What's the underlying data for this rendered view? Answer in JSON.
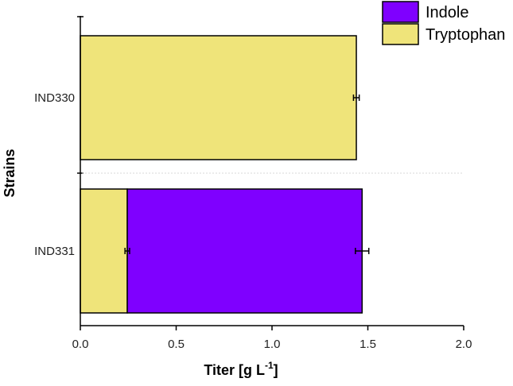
{
  "chart_data": {
    "type": "bar",
    "orientation": "horizontal",
    "stacked": true,
    "categories": [
      "IND330",
      "IND331"
    ],
    "series": [
      {
        "name": "Tryptophan",
        "color": "#EFE47A",
        "values": [
          1.44,
          0.245
        ],
        "error": [
          0.015,
          0.012
        ]
      },
      {
        "name": "Indole",
        "color": "#7F00FF",
        "values": [
          0,
          1.225
        ],
        "error": [
          0,
          0.035
        ]
      }
    ],
    "xlabel": "Titer [g L",
    "xlabel_sup": "-1",
    "xlabel_close": "]",
    "ylabel": "Strains",
    "xlim": [
      0,
      2.0
    ],
    "xticks": [
      "0.0",
      "0.5",
      "1.0",
      "1.5",
      "2.0"
    ],
    "legend": {
      "position": "top-right",
      "order": [
        "Indole",
        "Tryptophan"
      ]
    },
    "grid": false
  }
}
